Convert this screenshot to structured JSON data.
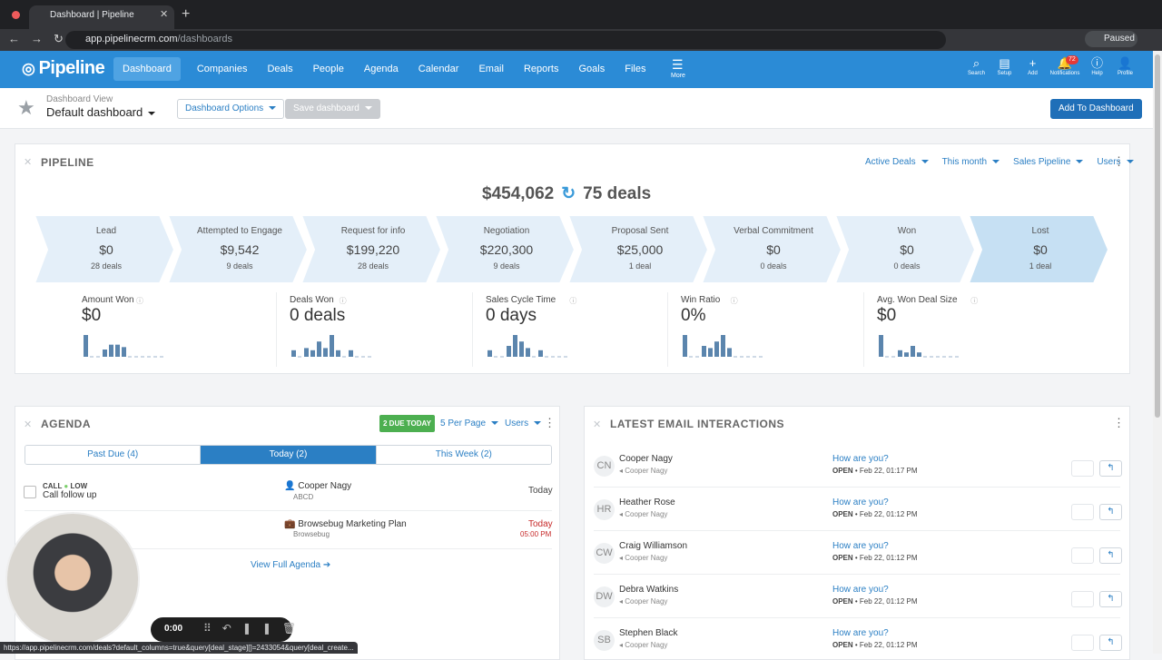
{
  "browser": {
    "tab_title": "Dashboard | Pipeline",
    "url_host": "app.pipelinecrm.com",
    "url_path": "/dashboards",
    "profile": "Paused"
  },
  "nav": {
    "logo": "Pipeline",
    "items": [
      "Dashboard",
      "Companies",
      "Deals",
      "People",
      "Agenda",
      "Calendar",
      "Email",
      "Reports",
      "Goals",
      "Files"
    ],
    "more": "More",
    "tools": [
      "Search",
      "Setup",
      "Add",
      "Notifications",
      "Help",
      "Profile"
    ],
    "notification_count": "72"
  },
  "toolbar": {
    "view_label": "Dashboard View",
    "view_name": "Default dashboard",
    "options": "Dashboard Options",
    "save": "Save dashboard",
    "add": "Add To Dashboard"
  },
  "pipeline": {
    "title": "PIPELINE",
    "filters": [
      "Active Deals",
      "This month",
      "Sales Pipeline",
      "Users"
    ],
    "total": "$454,062",
    "deals": "75 deals",
    "stages": [
      {
        "name": "Lead",
        "amount": "$0",
        "count": "28 deals"
      },
      {
        "name": "Attempted to Engage",
        "amount": "$9,542",
        "count": "9 deals"
      },
      {
        "name": "Request for info",
        "amount": "$199,220",
        "count": "28 deals"
      },
      {
        "name": "Negotiation",
        "amount": "$220,300",
        "count": "9 deals"
      },
      {
        "name": "Proposal Sent",
        "amount": "$25,000",
        "count": "1 deal"
      },
      {
        "name": "Verbal Commitment",
        "amount": "$0",
        "count": "0 deals"
      },
      {
        "name": "Won",
        "amount": "$0",
        "count": "0 deals"
      },
      {
        "name": "Lost",
        "amount": "$0",
        "count": "1 deal"
      }
    ],
    "metrics": [
      {
        "label": "Amount Won",
        "value": "$0",
        "bars": [
          9,
          0,
          0,
          3,
          5,
          5,
          4,
          0,
          0,
          0,
          0,
          0,
          0
        ]
      },
      {
        "label": "Deals Won",
        "value": "0 deals",
        "bars": [
          3,
          0,
          4,
          3,
          7,
          4,
          10,
          3,
          0,
          3,
          0,
          0,
          0
        ]
      },
      {
        "label": "Sales Cycle Time",
        "value": "0 days",
        "bars": [
          3,
          0,
          0,
          5,
          10,
          7,
          4,
          0,
          3,
          0,
          0,
          0,
          0
        ]
      },
      {
        "label": "Win Ratio",
        "value": "0%",
        "bars": [
          10,
          0,
          0,
          5,
          4,
          7,
          10,
          4,
          0,
          0,
          0,
          0,
          0
        ]
      },
      {
        "label": "Avg. Won Deal Size",
        "value": "$0",
        "bars": [
          10,
          0,
          0,
          3,
          2,
          5,
          2,
          0,
          0,
          0,
          0,
          0,
          0
        ]
      }
    ]
  },
  "agenda": {
    "title": "AGENDA",
    "due": "2 DUE TODAY",
    "per_page": "5 Per Page",
    "users": "Users",
    "tabs": [
      "Past Due (4)",
      "Today (2)",
      "This Week (2)"
    ],
    "task": {
      "type": "CALL",
      "priority": "LOW",
      "title": "Call follow up",
      "person": "Cooper Nagy",
      "company": "ABCD",
      "when": "Today"
    },
    "deal": {
      "title": "Browsebug Marketing Plan",
      "company": "Browsebug",
      "when": "Today",
      "time": "05:00 PM"
    },
    "view_full": "View Full Agenda"
  },
  "email": {
    "title": "LATEST EMAIL INTERACTIONS",
    "rows": [
      {
        "initials": "CN",
        "name": "Cooper Nagy",
        "owner": "Cooper Nagy",
        "subject": "How are you?",
        "status": "OPEN",
        "date": "Feb 22, 01:17 PM"
      },
      {
        "initials": "HR",
        "name": "Heather Rose",
        "owner": "Cooper Nagy",
        "subject": "How are you?",
        "status": "OPEN",
        "date": "Feb 22, 01:12 PM"
      },
      {
        "initials": "CW",
        "name": "Craig Williamson",
        "owner": "Cooper Nagy",
        "subject": "How are you?",
        "status": "OPEN",
        "date": "Feb 22, 01:12 PM"
      },
      {
        "initials": "DW",
        "name": "Debra Watkins",
        "owner": "Cooper Nagy",
        "subject": "How are you?",
        "status": "OPEN",
        "date": "Feb 22, 01:12 PM"
      },
      {
        "initials": "SB",
        "name": "Stephen Black",
        "owner": "Cooper Nagy",
        "subject": "How are you?",
        "status": "OPEN",
        "date": "Feb 22, 01:12 PM"
      }
    ]
  },
  "recorder": {
    "time": "0:00"
  },
  "status_url": "https://app.pipelinecrm.com/deals?default_columns=true&query[deal_stage][]=2433054&query[deal_create..."
}
